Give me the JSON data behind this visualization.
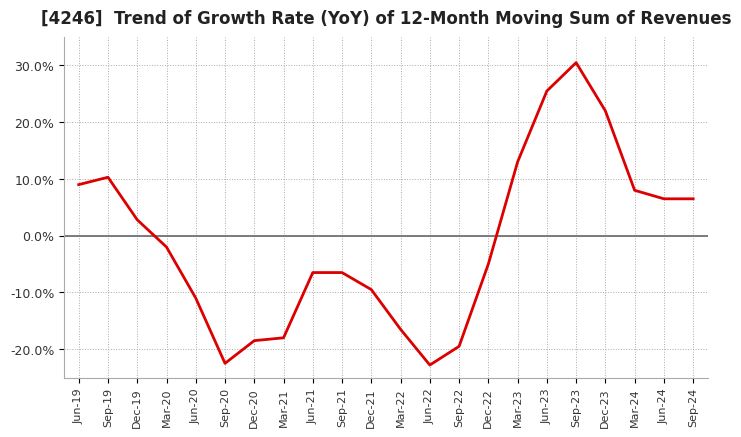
{
  "title": "[4246]  Trend of Growth Rate (YoY) of 12-Month Moving Sum of Revenues",
  "title_fontsize": 12,
  "ylim": [
    -0.25,
    0.35
  ],
  "yticks": [
    -0.2,
    -0.1,
    0.0,
    0.1,
    0.2,
    0.3
  ],
  "ytick_labels": [
    "-20.0%",
    "-10.0%",
    "0.0%",
    "10.0%",
    "20.0%",
    "30.0%"
  ],
  "line_color": "#dd0000",
  "line_width": 2.0,
  "grid_color": "#aaaaaa",
  "zero_line_color": "#666666",
  "bg_color": "#ffffff",
  "fig_bgcolor": "#ffffff",
  "x_labels": [
    "Jun-19",
    "Sep-19",
    "Dec-19",
    "Mar-20",
    "Jun-20",
    "Sep-20",
    "Dec-20",
    "Mar-21",
    "Jun-21",
    "Sep-21",
    "Dec-21",
    "Mar-22",
    "Jun-22",
    "Sep-22",
    "Dec-22",
    "Mar-23",
    "Jun-23",
    "Sep-23",
    "Dec-23",
    "Mar-24",
    "Jun-24",
    "Sep-24"
  ],
  "values": [
    0.09,
    0.103,
    0.028,
    -0.02,
    -0.11,
    -0.225,
    -0.185,
    -0.18,
    -0.065,
    -0.065,
    -0.095,
    -0.165,
    -0.228,
    -0.195,
    -0.05,
    0.13,
    0.255,
    0.305,
    0.22,
    0.08,
    0.065,
    0.065
  ]
}
